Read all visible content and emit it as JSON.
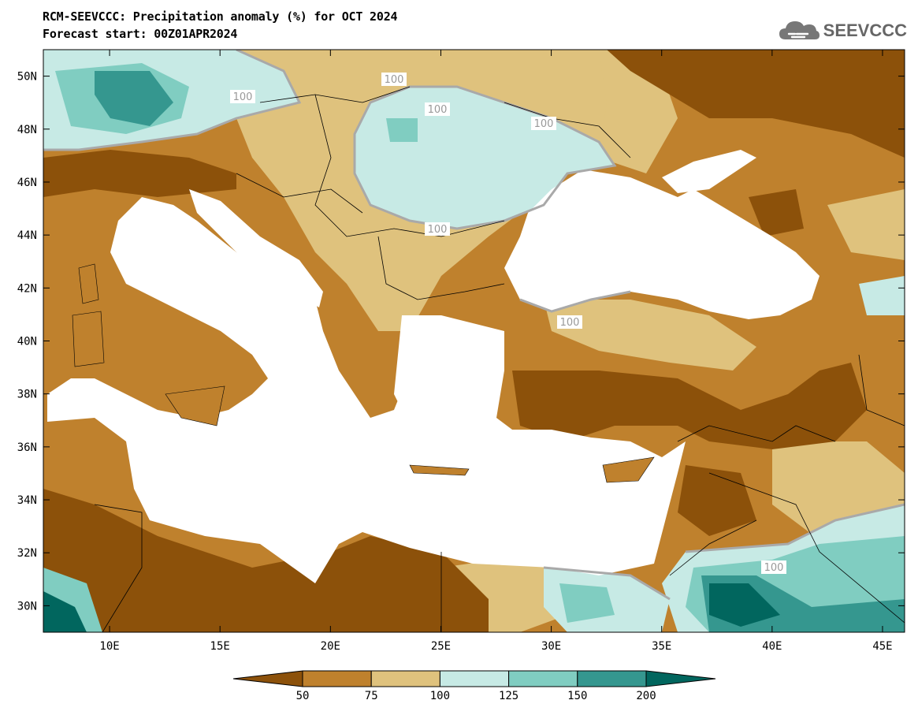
{
  "header": {
    "title": "RCM-SEEVCCC: Precipitation anomaly (%) for OCT 2024",
    "subtitle": "Forecast start: 00Z01APR2024",
    "logo_text": "SEEVCCC"
  },
  "map": {
    "lon_range": [
      7,
      46
    ],
    "lat_range": [
      29,
      51
    ],
    "lon_ticks": [
      "10E",
      "15E",
      "20E",
      "25E",
      "30E",
      "35E",
      "40E",
      "45E"
    ],
    "lat_ticks": [
      "50N",
      "48N",
      "46N",
      "44N",
      "42N",
      "40N",
      "38N",
      "36N",
      "34N",
      "32N",
      "30N"
    ],
    "contour_labels": [
      "100",
      "100",
      "100",
      "100",
      "100",
      "100",
      "100"
    ]
  },
  "legend": {
    "colors": [
      "#8c510a",
      "#bf812d",
      "#dfc27d",
      "#c7eae5",
      "#80cdc1",
      "#35978f",
      "#01665e"
    ],
    "ticks": [
      "50",
      "75",
      "100",
      "125",
      "150",
      "200"
    ]
  },
  "sea_color": "#ffffff"
}
